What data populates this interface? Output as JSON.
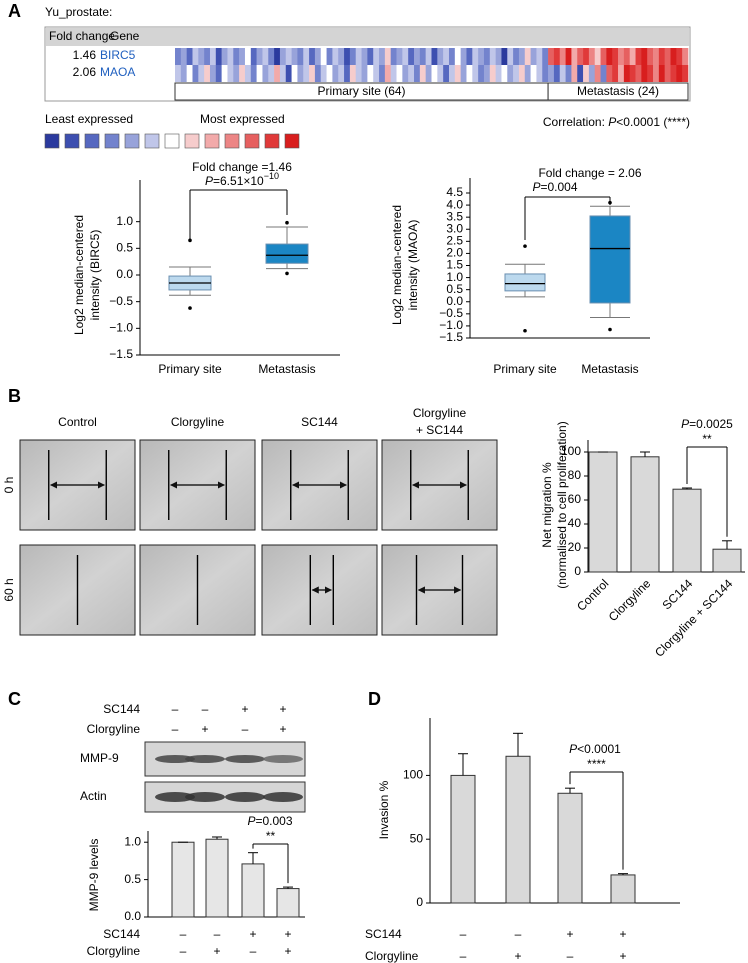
{
  "panel_labels": [
    "A",
    "B",
    "C",
    "D"
  ],
  "heatmap": {
    "title": "Yu_prostate:",
    "headers": [
      "Fold change",
      "Gene"
    ],
    "rows": [
      {
        "fold_change": "1.46",
        "gene": "BIRC5",
        "values": [
          -3,
          -2,
          -4,
          -1,
          -2,
          -3,
          -1,
          -5,
          -2,
          -1,
          -3,
          -2,
          0,
          -4,
          -2,
          -1,
          -3,
          -6,
          -2,
          -1,
          -2,
          -3,
          -1,
          -4,
          -2,
          0,
          -3,
          -1,
          -2,
          -5,
          -3,
          -1,
          -2,
          -4,
          -1,
          -2,
          1,
          -3,
          -2,
          -1,
          -4,
          -2,
          -3,
          -1,
          -5,
          -2,
          -1,
          -3,
          0,
          -2,
          -4,
          -1,
          -2,
          -3,
          -1,
          -2,
          -6,
          -1,
          -3,
          -2,
          1,
          -2,
          -1,
          -3,
          4,
          5,
          3,
          6,
          2,
          4,
          5,
          3,
          1,
          4,
          6,
          5,
          3,
          4,
          2,
          5,
          6,
          4,
          3,
          5,
          4,
          6,
          5,
          3
        ]
      },
      {
        "fold_change": "2.06",
        "gene": "MAOA",
        "values": [
          -1,
          -2,
          0,
          -3,
          -1,
          1,
          -2,
          -4,
          0,
          -1,
          -2,
          1,
          -1,
          -3,
          0,
          -2,
          -1,
          2,
          -1,
          -5,
          0,
          -2,
          -1,
          1,
          -3,
          -1,
          0,
          -2,
          -1,
          -4,
          1,
          -1,
          -2,
          0,
          -1,
          -3,
          2,
          -1,
          0,
          -2,
          -1,
          -3,
          1,
          -2,
          0,
          -1,
          -4,
          -1,
          1,
          -2,
          0,
          -1,
          -3,
          -2,
          1,
          -1,
          0,
          -2,
          -1,
          1,
          -2,
          0,
          -1,
          -3,
          -2,
          -4,
          -1,
          -3,
          2,
          -5,
          1,
          -2,
          3,
          -3,
          4,
          5,
          2,
          6,
          5,
          4,
          6,
          5,
          3,
          6,
          4,
          5,
          6,
          5
        ]
      }
    ],
    "groups": [
      {
        "label": "Primary site (64)",
        "count": 64
      },
      {
        "label": "Metastasis (24)",
        "count": 24
      }
    ],
    "legend": {
      "low": "Least expressed",
      "high": "Most expressed",
      "colors": [
        "#2b3a9e",
        "#3d4fb0",
        "#5668c0",
        "#7383cd",
        "#98a3da",
        "#c0c6e9",
        "#ffffff",
        "#f6cccc",
        "#f2aaaa",
        "#ec8585",
        "#e66060",
        "#e03a3a",
        "#d81e1e"
      ]
    }
  },
  "correlation": {
    "prefix": "Correlation: ",
    "p_symbol": "P",
    "p_text": "<0.0001 (****)"
  },
  "scratch_assay": {
    "columns": [
      [
        "Control"
      ],
      [
        "Clorgyline"
      ],
      [
        "SC144"
      ],
      [
        "Clorgyline",
        "+ SC144"
      ]
    ],
    "rows": [
      "0 h",
      "60 h"
    ]
  },
  "blot": {
    "conditions": [
      {
        "name": "SC144",
        "signs": [
          "–",
          "–",
          "+",
          "+"
        ]
      },
      {
        "name": "Clorgyline",
        "signs": [
          "–",
          "+",
          "–",
          "+"
        ]
      }
    ],
    "bands": [
      "MMP-9",
      "Actin"
    ]
  },
  "chart_data": [
    {
      "type": "box",
      "ylabel": [
        "Log2 median-centered",
        "intensity (BIRC5)"
      ],
      "categories": [
        "Primary site",
        "Metastasis"
      ],
      "colors": [
        "#bcd9ee",
        "#1b86c4"
      ],
      "boxes": [
        {
          "whisker_low": -0.38,
          "q1": -0.28,
          "median": -0.15,
          "q3": -0.02,
          "whisker_high": 0.15,
          "outliers": [
            0.65,
            -0.62
          ]
        },
        {
          "whisker_low": 0.12,
          "q1": 0.22,
          "median": 0.37,
          "q3": 0.58,
          "whisker_high": 0.9,
          "outliers": [
            0.98,
            0.03
          ]
        }
      ],
      "ylim": [
        -1.5,
        1.5
      ],
      "yticks": [
        {
          "value": -1.5,
          "label": "−1.5"
        },
        {
          "value": -1,
          "label": "−1.0"
        },
        {
          "value": -0.5,
          "label": "−0.5"
        },
        {
          "value": 0,
          "label": "0.0"
        },
        0.5,
        {
          "value": 1,
          "label": "1.0"
        }
      ],
      "annotation": {
        "title": "Fold change =1.46",
        "p_symbol": "P",
        "p_text": "=6.51×10",
        "p_exponent": "−10"
      }
    },
    {
      "type": "box",
      "ylabel": [
        "Log2 median-centered",
        "intensity (MAOA)"
      ],
      "categories": [
        "Primary site",
        "Metastasis"
      ],
      "colors": [
        "#bcd9ee",
        "#1b86c4"
      ],
      "boxes": [
        {
          "whisker_low": 0.2,
          "q1": 0.45,
          "median": 0.75,
          "q3": 1.15,
          "whisker_high": 1.55,
          "outliers": [
            2.3,
            -1.2
          ]
        },
        {
          "whisker_low": -0.65,
          "q1": -0.05,
          "median": 2.2,
          "q3": 3.55,
          "whisker_high": 3.95,
          "outliers": [
            4.1,
            -1.15
          ]
        }
      ],
      "ylim": [
        -1.5,
        4.5
      ],
      "yticks": [
        {
          "value": -1.5,
          "label": "−1.5"
        },
        {
          "value": -1,
          "label": "−1.0"
        },
        {
          "value": -0.5,
          "label": "−0.5"
        },
        {
          "value": 0,
          "label": "0.0"
        },
        0.5,
        {
          "value": 1,
          "label": "1.0"
        },
        1.5,
        {
          "value": 2,
          "label": "2.0"
        },
        2.5,
        {
          "value": 3,
          "label": "3.0"
        },
        3.5,
        {
          "value": 4,
          "label": "4.0"
        },
        4.5
      ],
      "annotation": {
        "title": "Fold change = 2.06",
        "p_symbol": "P",
        "p_text": "=0.004"
      }
    },
    {
      "type": "bar",
      "ylabel": [
        "Net migration %",
        "(normalised to cell proliferation)"
      ],
      "categories": [
        "Control",
        "Clorgyline",
        "SC144",
        "Clorgyline + SC144"
      ],
      "values": [
        100,
        96,
        69,
        19
      ],
      "errors": [
        0,
        4,
        1,
        7
      ],
      "color": "#d9d9d9",
      "ylim": [
        0,
        110
      ],
      "yticks": [
        0,
        20,
        40,
        60,
        80,
        100
      ],
      "annotation": {
        "p_symbol": "P",
        "p_text": "=0.0025",
        "stars": "**"
      }
    },
    {
      "type": "bar",
      "ylabel": [
        "MMP-9 levels"
      ],
      "values": [
        1,
        1.04,
        0.71,
        0.38
      ],
      "errors": [
        0,
        0.03,
        0.15,
        0.02
      ],
      "color": "#e6e6e6",
      "ylim": [
        0,
        1.15
      ],
      "yticks": [
        {
          "value": 0,
          "label": "0.0"
        },
        0.5,
        {
          "value": 1,
          "label": "1.0"
        }
      ],
      "conditions": [
        {
          "name": "SC144",
          "signs": [
            "–",
            "–",
            "+",
            "+"
          ]
        },
        {
          "name": "Clorgyline",
          "signs": [
            "–",
            "+",
            "–",
            "+"
          ]
        }
      ],
      "annotation": {
        "p_symbol": "P",
        "p_text": "=0.003",
        "stars": "**"
      }
    },
    {
      "type": "bar",
      "ylabel": [
        "Invasion %"
      ],
      "values": [
        100,
        115,
        86,
        22
      ],
      "errors": [
        17,
        18,
        4,
        1
      ],
      "color": "#d9d9d9",
      "ylim": [
        0,
        145
      ],
      "yticks": [
        0,
        50,
        100
      ],
      "conditions": [
        {
          "name": "SC144",
          "signs": [
            "–",
            "–",
            "+",
            "+"
          ]
        },
        {
          "name": "Clorgyline",
          "signs": [
            "–",
            "+",
            "–",
            "+"
          ]
        }
      ],
      "annotation": {
        "p_symbol": "P",
        "p_text": "<0.0001",
        "stars": "****"
      }
    }
  ]
}
